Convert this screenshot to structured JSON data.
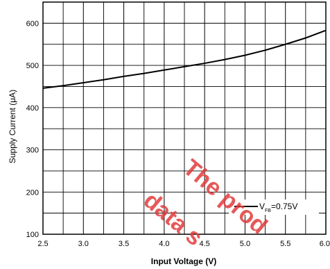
{
  "chart_data": {
    "type": "line",
    "xlabel": "Input Voltage (V)",
    "ylabel": "Supply Current (μA)",
    "xlim": [
      2.5,
      6.0
    ],
    "ylim": [
      100,
      650
    ],
    "x_ticks": [
      "2.5",
      "3.0",
      "3.5",
      "4.0",
      "4.5",
      "5.0",
      "5.5",
      "6.0"
    ],
    "y_ticks": [
      "100",
      "200",
      "300",
      "400",
      "500",
      "600"
    ],
    "grid": true,
    "legend_position": "bottom-right",
    "series": [
      {
        "name": "V_FB=0.75V",
        "legend_main": "V",
        "legend_sub": "FB",
        "legend_suffix": "=0.75V",
        "x": [
          2.5,
          2.75,
          3.0,
          3.25,
          3.5,
          3.75,
          4.0,
          4.25,
          4.5,
          4.75,
          5.0,
          5.25,
          5.5,
          5.75,
          6.0
        ],
        "y": [
          446,
          452,
          459,
          466,
          474,
          481,
          489,
          497,
          505,
          514,
          524,
          536,
          550,
          565,
          583
        ]
      }
    ],
    "colors": {
      "line": "#000000",
      "grid": "#000000",
      "watermark": "#e23b3b"
    }
  },
  "watermark": {
    "line1": "The prod",
    "line2": "data s"
  }
}
